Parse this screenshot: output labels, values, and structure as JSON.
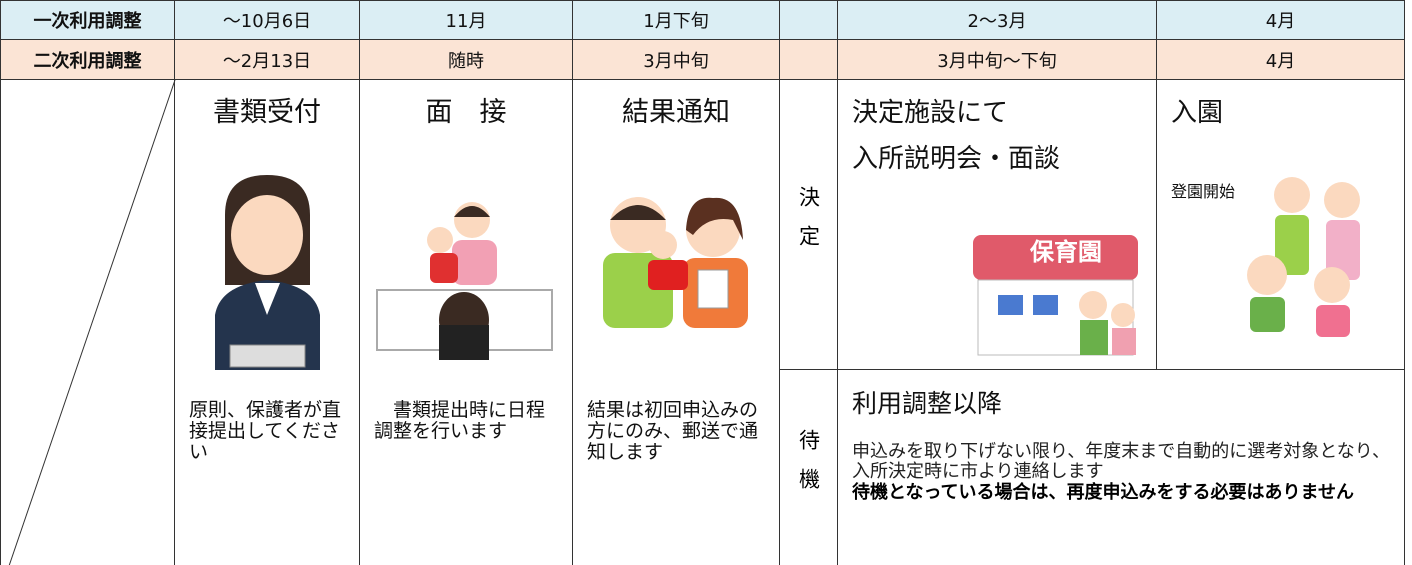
{
  "schedule": [
    {
      "label": "一次利用調整",
      "dates": [
        "～10月6日",
        "11月",
        "1月下旬",
        "2～3月",
        "4月"
      ]
    },
    {
      "label": "二次利用調整",
      "dates": [
        "～2月13日",
        "随時",
        "3月中旬",
        "3月中旬～下旬",
        "4月"
      ]
    }
  ],
  "steps": [
    {
      "title": "書類受付",
      "note": "原則、保護者が直接提出してください"
    },
    {
      "title": "面　接",
      "note": "　書類提出時に日程調整を行います"
    },
    {
      "title": "結果通知",
      "note": "結果は初回申込みの方にのみ、郵送で通知します"
    }
  ],
  "decision": {
    "label": "決定",
    "venue": {
      "title_lines": [
        "決定施設にて",
        "入所説明会・面談"
      ],
      "sign": "保育園"
    },
    "enrollment": {
      "title": "入園",
      "note": "登園開始"
    }
  },
  "waiting": {
    "label": "待機",
    "title": "利用調整以降",
    "text": "申込みを取り下げない限り、年度末まで自動的に選考対象となり、入所決定時に市より連絡します",
    "emphasis": "待機となっている場合は、再度申込みをする必要はありません"
  }
}
